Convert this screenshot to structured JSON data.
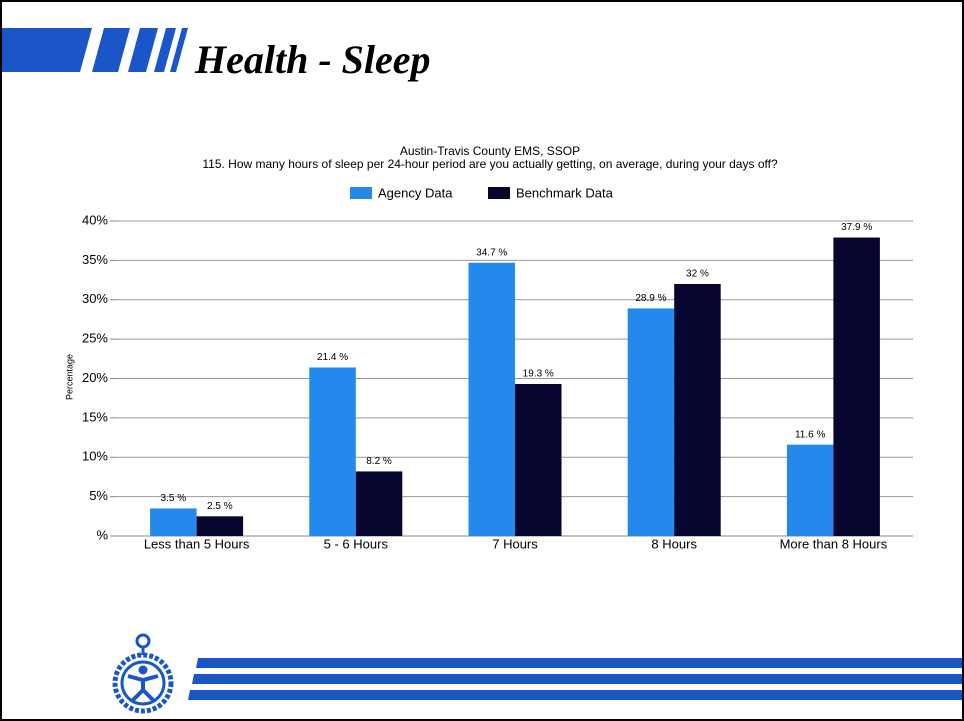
{
  "page_title": "Health - Sleep",
  "chart_data": {
    "type": "bar",
    "title": "Austin-Travis County EMS,   SSOP",
    "subtitle": "115. How many hours of sleep per 24-hour period are you actually getting, on average, during your days off?",
    "y_label": "Percentage",
    "categories": [
      "Less than 5 Hours",
      "5 - 6 Hours",
      "7 Hours",
      "8 Hours",
      "More than 8 Hours"
    ],
    "series": [
      {
        "name": "Agency Data",
        "color": "#2489ec",
        "values": [
          3.5,
          21.4,
          34.7,
          28.9,
          11.6
        ],
        "value_labels": [
          "3.5 %",
          "21.4 %",
          "34.7 %",
          "28.9 %",
          "11.6 %"
        ]
      },
      {
        "name": "Benchmark Data",
        "color": "#06062f",
        "values": [
          2.5,
          8.2,
          19.3,
          32,
          37.9
        ],
        "value_labels": [
          "2.5 %",
          "8.2 %",
          "19.3 %",
          "32 %",
          "37.9 %"
        ]
      }
    ],
    "ylim": [
      0,
      40
    ],
    "yticks": [
      {
        "value": 0,
        "label": "%"
      },
      {
        "value": 5,
        "label": "5%"
      },
      {
        "value": 10,
        "label": "10%"
      },
      {
        "value": 15,
        "label": "15%"
      },
      {
        "value": 20,
        "label": "20%"
      },
      {
        "value": 25,
        "label": "25%"
      },
      {
        "value": 30,
        "label": "30%"
      },
      {
        "value": 35,
        "label": "35%"
      },
      {
        "value": 40,
        "label": "40%"
      }
    ],
    "grid": true,
    "legend": "top"
  }
}
